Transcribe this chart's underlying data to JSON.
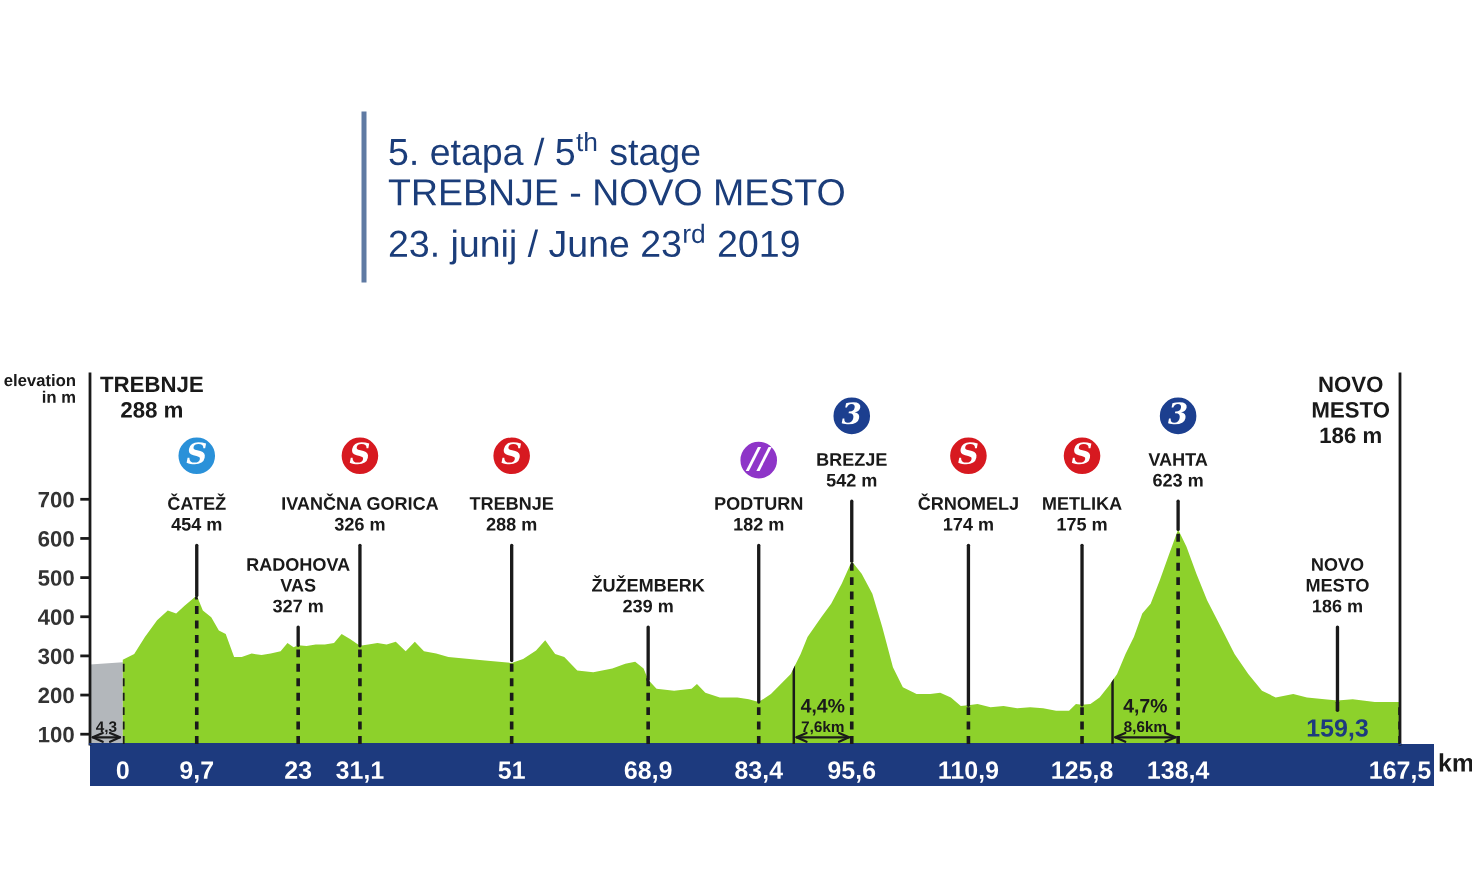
{
  "chart_data": {
    "type": "area",
    "title": "5. etapa / 5$^{th}$ stage",
    "subtitle": "TREBNJE - NOVO MESTO\n23. junij / June 23$^{rd}$ 2019",
    "xlabel": "km",
    "ylabel": "elevation\nin m",
    "series": [
      {
        "name": "4,3",
        "color": "#b3b7bb",
        "x": [
          -4.3,
          0
        ],
        "values": [
          278,
          284
        ]
      },
      {
        "color": "#8dd12b",
        "x": [
          0,
          1.5,
          2.9,
          4.5,
          5.9,
          7.0,
          8.1,
          9.7,
          10.5,
          11.6,
          12.6,
          13.5,
          14.6,
          15.6,
          16.9,
          18.2,
          19.4,
          20.7,
          21.6,
          22.4,
          23,
          24.1,
          25.3,
          26.5,
          27.7,
          28.7,
          29.8,
          31.1,
          32.2,
          33.4,
          34.6,
          35.8,
          37.1,
          38.3,
          39.5,
          41.1,
          42.7,
          45.1,
          47.5,
          51,
          52.5,
          54.2,
          55.4,
          56.7,
          57.9,
          59.6,
          61.7,
          64.2,
          65.9,
          67.2,
          68.3,
          68.9,
          70.0,
          72.3,
          74.6,
          75.3,
          76.4,
          78.3,
          80.6,
          82.1,
          83.4,
          85.0,
          86.3,
          87.6,
          88.9,
          89.8,
          91.6,
          92.9,
          94.3,
          95.6,
          96.9,
          98.3,
          99.6,
          101.0,
          102.3,
          104.1,
          105.9,
          107.2,
          108.6,
          109.9,
          110.9,
          112.1,
          113.8,
          115.5,
          117.3,
          119.0,
          120.7,
          122.4,
          124.1,
          125.0,
          125.8,
          126.9,
          128.1,
          129.3,
          130.4,
          131.5,
          132.6,
          133.7,
          134.8,
          136.0,
          137.1,
          138.4,
          139.5,
          140.8,
          142.2,
          144.0,
          145.8,
          147.6,
          149.4,
          151.2,
          153.5,
          155.3,
          157.6,
          159.3,
          161.3,
          164.2,
          167.5
        ],
        "values": [
          290,
          305,
          348,
          391,
          416,
          408,
          428,
          454,
          416,
          399,
          365,
          356,
          297,
          297,
          306,
          302,
          306,
          312,
          333,
          322,
          327,
          325,
          329,
          329,
          333,
          356,
          343,
          326,
          329,
          333,
          329,
          336,
          312,
          336,
          312,
          306,
          297,
          293,
          288,
          282,
          292,
          314,
          340,
          305,
          297,
          263,
          258,
          268,
          280,
          285,
          268,
          239,
          216,
          211,
          216,
          228,
          206,
          194,
          194,
          189,
          182,
          203,
          228,
          254,
          305,
          348,
          399,
          433,
          485,
          542,
          510,
          459,
          374,
          271,
          220,
          203,
          203,
          206,
          194,
          172,
          174,
          177,
          169,
          172,
          166,
          169,
          166,
          160,
          160,
          177,
          175,
          177,
          194,
          223,
          254,
          305,
          348,
          408,
          433,
          493,
          553,
          623,
          579,
          510,
          442,
          374,
          305,
          254,
          211,
          194,
          203,
          194,
          189,
          186,
          189,
          182,
          182
        ]
      }
    ],
    "xlim": [
      -4.3,
      167.5
    ],
    "xticks": [
      0,
      {
        "value": 9.7,
        "label": "9,7"
      },
      23,
      {
        "value": 31.1,
        "label": "31,1"
      },
      51,
      {
        "value": 68.9,
        "label": "68,9"
      },
      {
        "value": 83.4,
        "label": "83,4"
      },
      {
        "value": 95.6,
        "label": "95,6"
      },
      {
        "value": 110.9,
        "label": "110,9"
      },
      {
        "value": 125.8,
        "label": "125,8"
      },
      {
        "value": 138.4,
        "label": "138,4"
      },
      {
        "value": 167.5,
        "label": "167,5"
      }
    ],
    "ylim": [
      75,
      1020
    ],
    "yticks": [
      100,
      200,
      300,
      400,
      500,
      600,
      700
    ],
    "grid": "x",
    "ref_lines": [
      {
        "axis": "x",
        "value": 88,
        "label": "4,4%\n7,6km",
        "color": "#1a1a1a"
      },
      {
        "axis": "x",
        "value": 129.8,
        "label": "4,7%\n8,6km",
        "color": "#1a1a1a"
      }
    ],
    "annotations": [
      "TREBNJE\n288 m",
      {
        "text": "ČATEŽ\n454 m",
        "x": 9.7,
        "y": 454
      },
      {
        "text": "S",
        "x": 9.7,
        "y": 811
      },
      {
        "text": "RADOHOVA\nVAS\n327 m",
        "x": 23,
        "y": 327
      },
      {
        "text": "IVANČNA GORICA\n326 m",
        "x": 31.1,
        "y": 326
      },
      {
        "text": "S",
        "x": 31.1,
        "y": 811
      },
      {
        "text": "TREBNJE\n288 m",
        "x": 51,
        "y": 288
      },
      {
        "text": "S",
        "x": 51,
        "y": 811
      },
      {
        "text": "ŽUŽEMBERK\n239 m",
        "x": 68.9,
        "y": 239
      },
      {
        "text": "PODTURN\n182 m",
        "x": 83.4,
        "y": 182
      },
      {
        "text": "//",
        "x": 83.4,
        "y": 800
      },
      {
        "text": "BREZJE\n542 m",
        "x": 95.6,
        "y": 542
      },
      {
        "text": "3",
        "x": 95.6,
        "y": 913
      },
      {
        "text": "ČRNOMELJ\n174 m",
        "x": 110.9,
        "y": 174
      },
      {
        "text": "S",
        "x": 110.9,
        "y": 811
      },
      {
        "text": "METLIKA\n175 m",
        "x": 125.8,
        "y": 175
      },
      {
        "text": "S",
        "x": 125.8,
        "y": 811
      },
      {
        "text": "VAHTA\n623 m",
        "x": 138.4,
        "y": 623
      },
      {
        "text": "3",
        "x": 138.4,
        "y": 913
      },
      {
        "text": "NOVO\nMESTO\n186 m",
        "x": 159.3,
        "y": 186
      },
      {
        "text": "159,3",
        "x": 159.3,
        "y": 186
      },
      "NOVO\nMESTO\n186 m"
    ]
  }
}
